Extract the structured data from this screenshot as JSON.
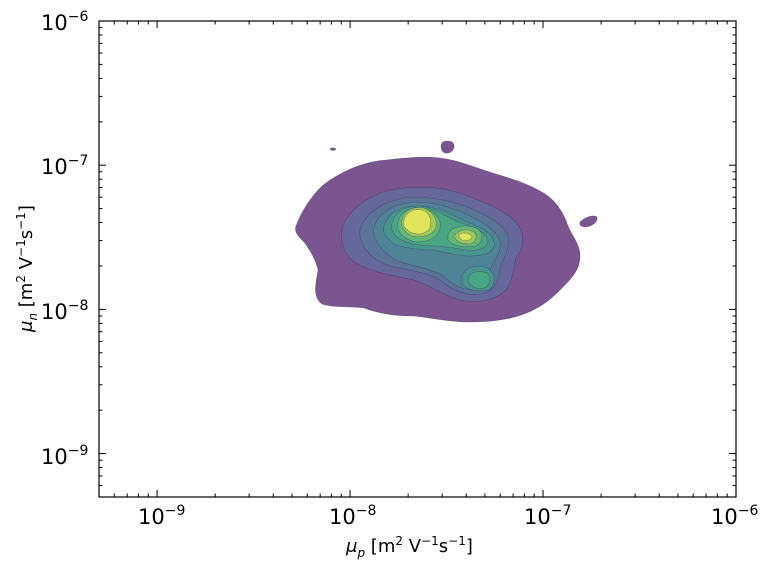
{
  "chart_data": {
    "type": "contour",
    "x_scale": "log",
    "y_scale": "log",
    "xlim": [
      5e-10,
      1e-06
    ],
    "ylim": [
      5e-10,
      1e-06
    ],
    "x_ticks": [
      {
        "value": 1e-09,
        "base": "10",
        "exp": "−9"
      },
      {
        "value": 1e-08,
        "base": "10",
        "exp": "−8"
      },
      {
        "value": 1e-07,
        "base": "10",
        "exp": "−7"
      },
      {
        "value": 1e-06,
        "base": "10",
        "exp": "−6"
      }
    ],
    "y_ticks": [
      {
        "value": 1e-09,
        "base": "10",
        "exp": "−9"
      },
      {
        "value": 1e-08,
        "base": "10",
        "exp": "−8"
      },
      {
        "value": 1e-07,
        "base": "10",
        "exp": "−7"
      },
      {
        "value": 1e-06,
        "base": "10",
        "exp": "−6"
      }
    ],
    "xlabel": {
      "sym": "μ",
      "sub": "p",
      "unit_a": " [m",
      "unit_a_sup": "2",
      "unit_b": " V",
      "unit_b_sup": "−1",
      "unit_c": "s",
      "unit_c_sup": "−1",
      "unit_d": "]"
    },
    "ylabel": {
      "sym": "μ",
      "sub": "n",
      "unit_a": " [m",
      "unit_a_sup": "2",
      "unit_b": " V",
      "unit_b_sup": "−1",
      "unit_c": "s",
      "unit_c_sup": "−1",
      "unit_d": "]"
    },
    "grid": false,
    "levels": [
      {
        "color": "#7b5590"
      },
      {
        "color": "#66679a"
      },
      {
        "color": "#5a7498"
      },
      {
        "color": "#4f8496"
      },
      {
        "color": "#48958f"
      },
      {
        "color": "#4aa585"
      },
      {
        "color": "#62b676"
      },
      {
        "color": "#9ccb5f"
      },
      {
        "color": "#dfe45a"
      }
    ],
    "line_color": "#3d2a5a"
  }
}
